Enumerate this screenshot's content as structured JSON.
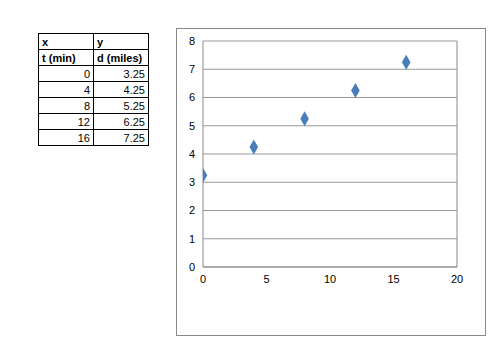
{
  "chart_data": {
    "type": "scatter",
    "x": [
      0,
      4,
      8,
      12,
      16
    ],
    "values": [
      3.25,
      4.25,
      5.25,
      6.25,
      7.25
    ],
    "color": "#4a7ebb",
    "marker": "diamond",
    "xlim": [
      0,
      20
    ],
    "xticks": [
      0,
      5,
      10,
      15,
      20
    ],
    "ylim": [
      0,
      8
    ],
    "yticks": [
      0,
      1,
      2,
      3,
      4,
      5,
      6,
      7,
      8
    ],
    "grid": true
  },
  "table": {
    "header": [
      [
        "x",
        "y"
      ],
      [
        "t (min)",
        "d (miles)"
      ]
    ],
    "rows": [
      [
        0,
        3.25
      ],
      [
        4,
        4.25
      ],
      [
        8,
        5.25
      ],
      [
        12,
        6.25
      ],
      [
        16,
        7.25
      ]
    ]
  }
}
